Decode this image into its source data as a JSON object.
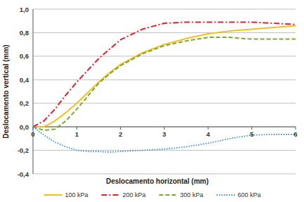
{
  "chart_data": {
    "type": "line",
    "x_label": "Deslocamento horizontal (mm)",
    "y_label": "Deslocamento vertical (mm)",
    "x": [
      0,
      0.25,
      0.5,
      0.75,
      1,
      1.25,
      1.5,
      1.75,
      2,
      2.5,
      3,
      3.5,
      4,
      4.5,
      5,
      5.5,
      6
    ],
    "series": [
      {
        "name": "100 kPa",
        "color": "#f4c01e",
        "line_style": "solid",
        "values": [
          0,
          0,
          0.05,
          0.12,
          0.2,
          0.29,
          0.38,
          0.46,
          0.53,
          0.63,
          0.7,
          0.75,
          0.79,
          0.815,
          0.83,
          0.845,
          0.86
        ]
      },
      {
        "name": "200 kPa",
        "color": "#e3202b",
        "line_style": "dashdot",
        "values": [
          0,
          0.05,
          0.15,
          0.27,
          0.38,
          0.48,
          0.58,
          0.66,
          0.74,
          0.83,
          0.88,
          0.89,
          0.89,
          0.89,
          0.89,
          0.88,
          0.87
        ]
      },
      {
        "name": "300 kPa",
        "color": "#7aab2f",
        "line_style": "dashed",
        "values": [
          0,
          -0.03,
          -0.02,
          0.05,
          0.15,
          0.26,
          0.37,
          0.45,
          0.52,
          0.62,
          0.69,
          0.73,
          0.76,
          0.76,
          0.745,
          0.745,
          0.745
        ]
      },
      {
        "name": "600 kPa",
        "color": "#3a8fd0",
        "line_style": "dotted",
        "values": [
          0,
          -0.07,
          -0.13,
          -0.17,
          -0.2,
          -0.21,
          -0.21,
          -0.215,
          -0.21,
          -0.2,
          -0.19,
          -0.17,
          -0.14,
          -0.1,
          -0.07,
          -0.065,
          -0.065
        ]
      }
    ],
    "xlim": [
      0,
      6
    ],
    "xticks": [
      0,
      1,
      2,
      3,
      4,
      5,
      6
    ],
    "ylim": [
      -0.4,
      1.0
    ],
    "yticks": [
      {
        "value": -0.4,
        "label": "-0,4"
      },
      {
        "value": -0.2,
        "label": "-0,2"
      },
      {
        "value": 0,
        "label": "0,0"
      },
      {
        "value": 0.2,
        "label": "0,2"
      },
      {
        "value": 0.4,
        "label": "0,4"
      },
      {
        "value": 0.6,
        "label": "0,6"
      },
      {
        "value": 0.8,
        "label": "0,8"
      },
      {
        "value": 1.0,
        "label": "1,0"
      }
    ],
    "grid": true,
    "legend": "bottom"
  }
}
